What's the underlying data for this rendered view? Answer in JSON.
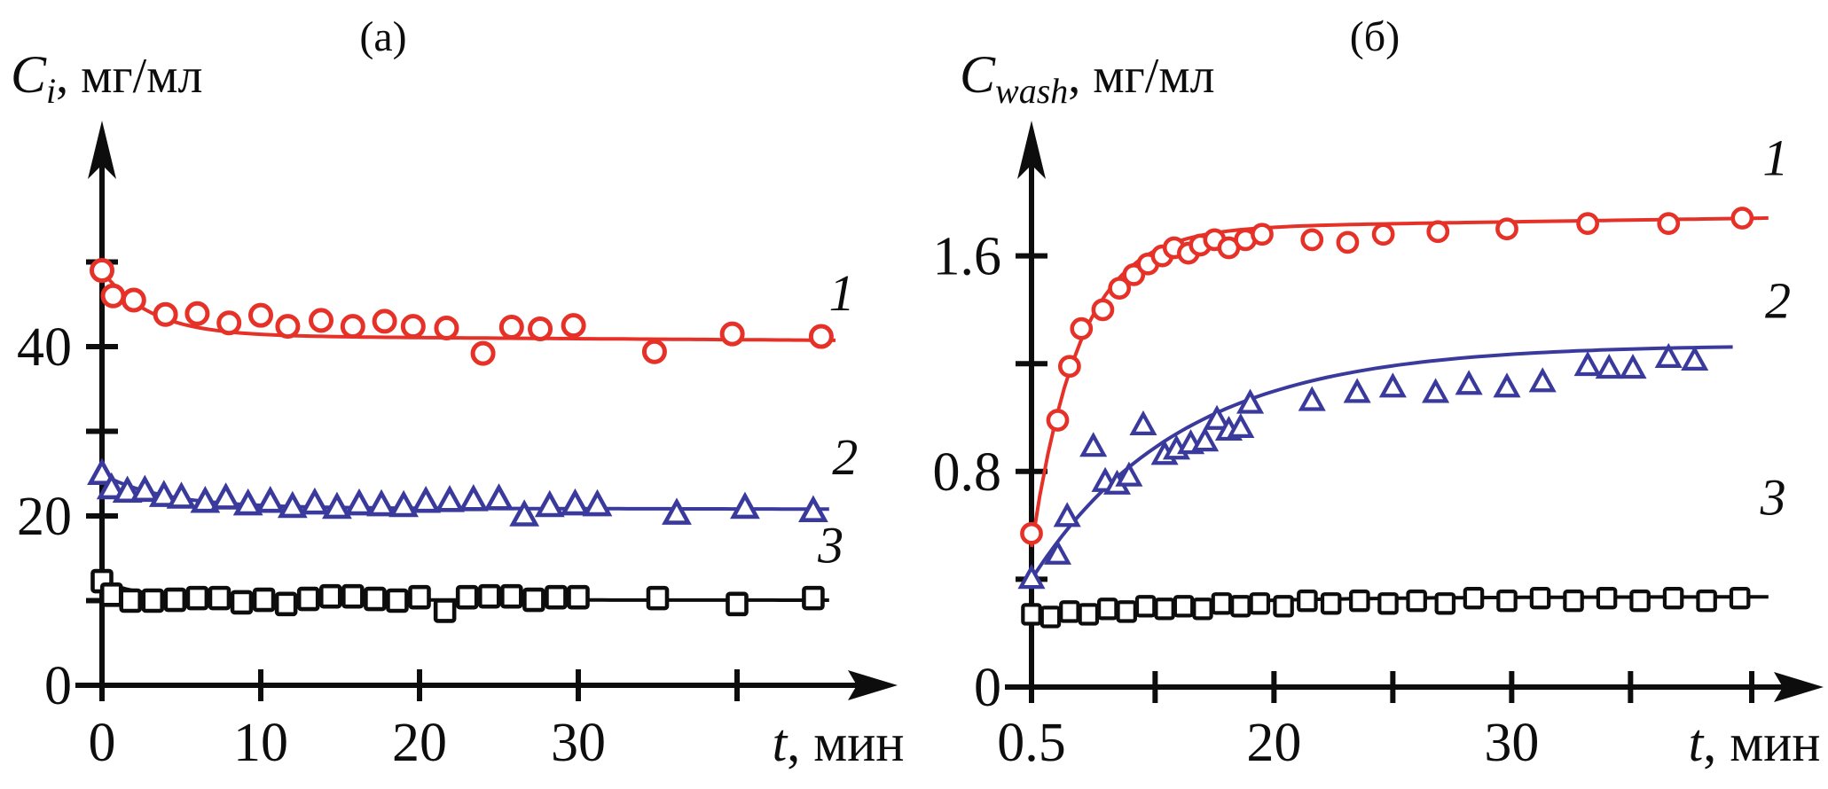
{
  "figure": {
    "background": "#ffffff"
  },
  "chart_data": [
    {
      "type": "scatter",
      "panel_tag": "(a)",
      "y_axis": {
        "title_main": "C",
        "title_sub": "i",
        "title_units": ", мг/мл",
        "ticks": [
          {
            "v": 0,
            "label": "0"
          },
          {
            "v": 10,
            "label": ""
          },
          {
            "v": 20,
            "label": "20"
          },
          {
            "v": 30,
            "label": ""
          },
          {
            "v": 40,
            "label": "40"
          },
          {
            "v": 50,
            "label": ""
          }
        ],
        "range": [
          0,
          58
        ]
      },
      "x_axis": {
        "title_main": "t",
        "title_units": ", мин",
        "ticks": [
          {
            "v": 0,
            "label": "0"
          },
          {
            "v": 10,
            "label": "10"
          },
          {
            "v": 20,
            "label": "20"
          },
          {
            "v": 30,
            "label": "30"
          },
          {
            "v": 40,
            "label": ""
          }
        ],
        "range": [
          0,
          50
        ]
      },
      "series": [
        {
          "label": "1",
          "color": "#e63128",
          "marker": "circle",
          "label_at": {
            "x": 46.6,
            "v": 44.3
          },
          "points": [
            [
              0,
              49.0
            ],
            [
              0.7,
              46.0
            ],
            [
              2,
              45.5
            ],
            [
              4,
              43.8
            ],
            [
              6,
              43.9
            ],
            [
              8,
              42.8
            ],
            [
              10,
              43.7
            ],
            [
              11.7,
              42.4
            ],
            [
              13.8,
              43.1
            ],
            [
              15.8,
              42.4
            ],
            [
              17.8,
              43.0
            ],
            [
              19.6,
              42.4
            ],
            [
              21.7,
              42.2
            ],
            [
              24,
              39.2
            ],
            [
              25.8,
              42.3
            ],
            [
              27.6,
              42.1
            ],
            [
              29.7,
              42.5
            ],
            [
              34.8,
              39.4
            ],
            [
              39.7,
              41.5
            ],
            [
              45.3,
              41.2
            ]
          ],
          "fit": {
            "v0": 49.0,
            "vinf": 41.3,
            "tau": 3.0,
            "slope": -0.012,
            "x_start": 0,
            "x_end": 46.2
          }
        },
        {
          "label": "2",
          "color": "#3a3a9d",
          "marker": "triangle",
          "label_at": {
            "x": 46.8,
            "v": 24.9
          },
          "points": [
            [
              0,
              24.9
            ],
            [
              0.6,
              23.2
            ],
            [
              1.6,
              22.8
            ],
            [
              2.7,
              22.9
            ],
            [
              3.9,
              22.3
            ],
            [
              5,
              22.1
            ],
            [
              6.5,
              21.6
            ],
            [
              7.8,
              22.0
            ],
            [
              9.2,
              21.3
            ],
            [
              10.6,
              21.6
            ],
            [
              12,
              21.0
            ],
            [
              13.4,
              21.4
            ],
            [
              14.8,
              20.9
            ],
            [
              16.2,
              21.3
            ],
            [
              17.6,
              21.2
            ],
            [
              19,
              21.1
            ],
            [
              20.4,
              21.6
            ],
            [
              21.9,
              21.7
            ],
            [
              23.4,
              21.8
            ],
            [
              25,
              21.9
            ],
            [
              26.6,
              20.0
            ],
            [
              28.2,
              21.1
            ],
            [
              29.8,
              21.3
            ],
            [
              31.2,
              21.2
            ],
            [
              36.2,
              20.2
            ],
            [
              40.5,
              20.9
            ],
            [
              44.8,
              20.5
            ]
          ],
          "fit": {
            "v0": 24.9,
            "vinf": 20.95,
            "tau": 4.0,
            "slope": -0.003,
            "x_start": 0,
            "x_end": 45.8
          }
        },
        {
          "label": "3",
          "color": "#0d0d0d",
          "marker": "square",
          "label_at": {
            "x": 45.9,
            "v": 14.5
          },
          "points": [
            [
              0,
              12.3
            ],
            [
              0.6,
              10.7
            ],
            [
              1.8,
              10.0
            ],
            [
              3.2,
              10.0
            ],
            [
              4.6,
              10.1
            ],
            [
              6,
              10.3
            ],
            [
              7.4,
              10.3
            ],
            [
              8.8,
              9.8
            ],
            [
              10.2,
              10.1
            ],
            [
              11.6,
              9.6
            ],
            [
              13,
              10.2
            ],
            [
              14.4,
              10.5
            ],
            [
              15.8,
              10.5
            ],
            [
              17.2,
              10.2
            ],
            [
              18.6,
              10.0
            ],
            [
              20,
              10.4
            ],
            [
              21.6,
              8.8
            ],
            [
              23,
              10.4
            ],
            [
              24.4,
              10.5
            ],
            [
              25.8,
              10.5
            ],
            [
              27.2,
              10.1
            ],
            [
              28.6,
              10.4
            ],
            [
              30,
              10.4
            ],
            [
              35,
              10.3
            ],
            [
              40,
              9.6
            ],
            [
              44.8,
              10.3
            ]
          ],
          "fit": {
            "v0": 12.3,
            "vinf": 10.1,
            "tau": 2.8,
            "slope": -0.001,
            "x_start": 0,
            "x_end": 45.8
          }
        }
      ]
    },
    {
      "type": "scatter",
      "panel_tag": "(б)",
      "y_axis": {
        "title_main": "C",
        "title_sub": "wash",
        "title_units": ", мг/мл",
        "ticks": [
          {
            "v": 0,
            "label": "0"
          },
          {
            "v": 0.4,
            "label": ""
          },
          {
            "v": 0.8,
            "label": "0.8"
          },
          {
            "v": 1.2,
            "label": ""
          },
          {
            "v": 1.6,
            "label": "1.6"
          }
        ],
        "range": [
          0,
          2.1
        ]
      },
      "x_axis": {
        "title_main": "t",
        "title_units": ", мин",
        "ticks": [
          {
            "v": 0,
            "label": "0.5"
          },
          {
            "v": 5.2,
            "label": ""
          },
          {
            "v": 10.2,
            "label": "20"
          },
          {
            "v": 15.2,
            "label": ""
          },
          {
            "v": 20.2,
            "label": "30"
          },
          {
            "v": 25.2,
            "label": ""
          },
          {
            "v": 30.3,
            "label": ""
          }
        ],
        "range": [
          0,
          33.2
        ]
      },
      "series": [
        {
          "label": "1",
          "color": "#e63128",
          "marker": "circle",
          "label_at": {
            "x": 31.3,
            "v": 1.9
          },
          "points": [
            [
              0,
              0.57
            ],
            [
              1.1,
              0.99
            ],
            [
              1.6,
              1.19
            ],
            [
              2.1,
              1.33
            ],
            [
              3.0,
              1.4
            ],
            [
              3.7,
              1.48
            ],
            [
              4.3,
              1.53
            ],
            [
              4.9,
              1.57
            ],
            [
              5.5,
              1.6
            ],
            [
              6.0,
              1.63
            ],
            [
              6.6,
              1.61
            ],
            [
              7.1,
              1.64
            ],
            [
              7.7,
              1.66
            ],
            [
              8.3,
              1.63
            ],
            [
              9.0,
              1.66
            ],
            [
              9.7,
              1.68
            ],
            [
              11.8,
              1.66
            ],
            [
              13.3,
              1.65
            ],
            [
              14.8,
              1.68
            ],
            [
              17.1,
              1.69
            ],
            [
              20.0,
              1.7
            ],
            [
              23.4,
              1.72
            ],
            [
              26.8,
              1.72
            ],
            [
              29.9,
              1.74
            ]
          ],
          "fit": {
            "v0": 0.52,
            "vinf": 1.7,
            "tau": 2.0,
            "slope": 0.0013,
            "x_start": 0,
            "x_end": 31.0
          }
        },
        {
          "label": "2",
          "color": "#3a3a9d",
          "marker": "triangle",
          "label_at": {
            "x": 31.4,
            "v": 1.37
          },
          "points": [
            [
              0,
              0.4
            ],
            [
              1.1,
              0.49
            ],
            [
              1.5,
              0.63
            ],
            [
              2.6,
              0.89
            ],
            [
              3.1,
              0.76
            ],
            [
              3.6,
              0.75
            ],
            [
              4.1,
              0.78
            ],
            [
              4.7,
              0.97
            ],
            [
              5.6,
              0.86
            ],
            [
              6.1,
              0.88
            ],
            [
              6.7,
              0.9
            ],
            [
              7.3,
              0.91
            ],
            [
              7.8,
              0.99
            ],
            [
              8.3,
              0.95
            ],
            [
              8.8,
              0.96
            ],
            [
              9.2,
              1.05
            ],
            [
              11.8,
              1.06
            ],
            [
              13.7,
              1.09
            ],
            [
              15.2,
              1.11
            ],
            [
              17.0,
              1.09
            ],
            [
              18.4,
              1.12
            ],
            [
              20.0,
              1.11
            ],
            [
              21.5,
              1.13
            ],
            [
              23.4,
              1.19
            ],
            [
              24.3,
              1.18
            ],
            [
              25.3,
              1.18
            ],
            [
              26.8,
              1.22
            ],
            [
              27.9,
              1.21
            ]
          ],
          "fit": {
            "v0": 0.4,
            "vinf": 1.27,
            "tau": 6.3,
            "slope": 0,
            "x_start": 0,
            "x_end": 29.5
          }
        },
        {
          "label": "3",
          "color": "#0d0d0d",
          "marker": "square",
          "label_at": {
            "x": 31.2,
            "v": 0.64
          },
          "points": [
            [
              0,
              0.27
            ],
            [
              0.8,
              0.26
            ],
            [
              1.6,
              0.28
            ],
            [
              2.4,
              0.27
            ],
            [
              3.2,
              0.29
            ],
            [
              4.0,
              0.28
            ],
            [
              4.8,
              0.3
            ],
            [
              5.6,
              0.29
            ],
            [
              6.4,
              0.3
            ],
            [
              7.2,
              0.29
            ],
            [
              8.0,
              0.31
            ],
            [
              8.8,
              0.3
            ],
            [
              9.6,
              0.31
            ],
            [
              10.6,
              0.3
            ],
            [
              11.6,
              0.32
            ],
            [
              12.6,
              0.31
            ],
            [
              13.8,
              0.32
            ],
            [
              15.0,
              0.31
            ],
            [
              16.2,
              0.32
            ],
            [
              17.4,
              0.31
            ],
            [
              18.6,
              0.33
            ],
            [
              20.0,
              0.32
            ],
            [
              21.4,
              0.33
            ],
            [
              22.8,
              0.32
            ],
            [
              24.2,
              0.33
            ],
            [
              25.6,
              0.32
            ],
            [
              27.0,
              0.33
            ],
            [
              28.4,
              0.32
            ],
            [
              29.8,
              0.33
            ]
          ],
          "fit": {
            "v0": 0.265,
            "vinf": 0.335,
            "tau": 6.0,
            "slope": 0,
            "x_start": 0,
            "x_end": 31.0
          }
        }
      ]
    }
  ]
}
